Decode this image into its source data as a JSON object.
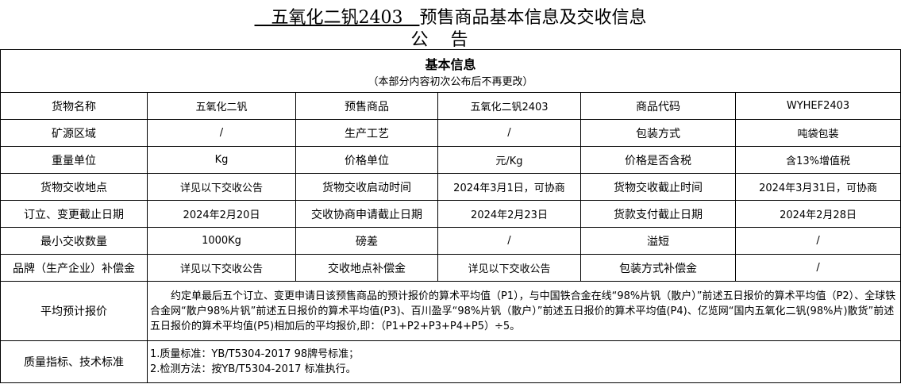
{
  "title": {
    "underlined": "   五氧化二钒2403   ",
    "rest": "预售商品基本信息及交收信息",
    "sub": "公告"
  },
  "section": {
    "heading": "基本信息",
    "note": "（本部分内容初次公布后不再更改）"
  },
  "rows": [
    [
      "货物名称",
      "五氧化二钒",
      "预售商品",
      "五氧化二钒2403",
      "商品代码",
      "WYHEF2403"
    ],
    [
      "矿源区域",
      "/",
      "生产工艺",
      "/",
      "包装方式",
      "吨袋包装"
    ],
    [
      "重量单位",
      "Kg",
      "价格单位",
      "元/Kg",
      "价格是否含税",
      "含13%增值税"
    ],
    [
      "货物交收地点",
      "详见以下交收公告",
      "货物交收启动时间",
      "2024年3月1日，可协商",
      "货物交收截止时间",
      "2024年3月31日，可协商"
    ],
    [
      "订立、变更截止日期",
      "2024年2月20日",
      "交收协商申请截止日期",
      "2024年2月23日",
      "货款支付截止日期",
      "2024年2月28日"
    ],
    [
      "最小交收数量",
      "1000Kg",
      "磅差",
      "/",
      "溢短",
      "/"
    ],
    [
      "品牌（生产企业）补偿金",
      "详见以下交收公告",
      "交收地点补偿金",
      "详见以下交收公告",
      "包装方式补偿金",
      "/"
    ]
  ],
  "avg_price": {
    "label": "平均预计报价",
    "text": "约定单最后五个订立、变更申请日该预售商品的预计报价的算术平均值（P1），与中国铁合金在线“98%片钒（散户）”前述五日报价的算术平均值（P2）、全球铁合金网“散户98%片钒”前述五日报价的算术平均值(P3)、百川盈孚“98%片钒（散户）”前述五日报价的算术平均值(P4)、亿览网“国内五氧化二钒(98%片)散货”前述五日报价的算术平均值(P5)相加后的平均报价,即：（P1+P2+P3+P4+P5）÷5。"
  },
  "quality": {
    "label": "质量指标、技术标准",
    "lines": [
      "1.质量标准：YB/T5304-2017 98牌号标准；",
      "2.检测方法：按YB/T5304-2017 标准执行。"
    ]
  }
}
